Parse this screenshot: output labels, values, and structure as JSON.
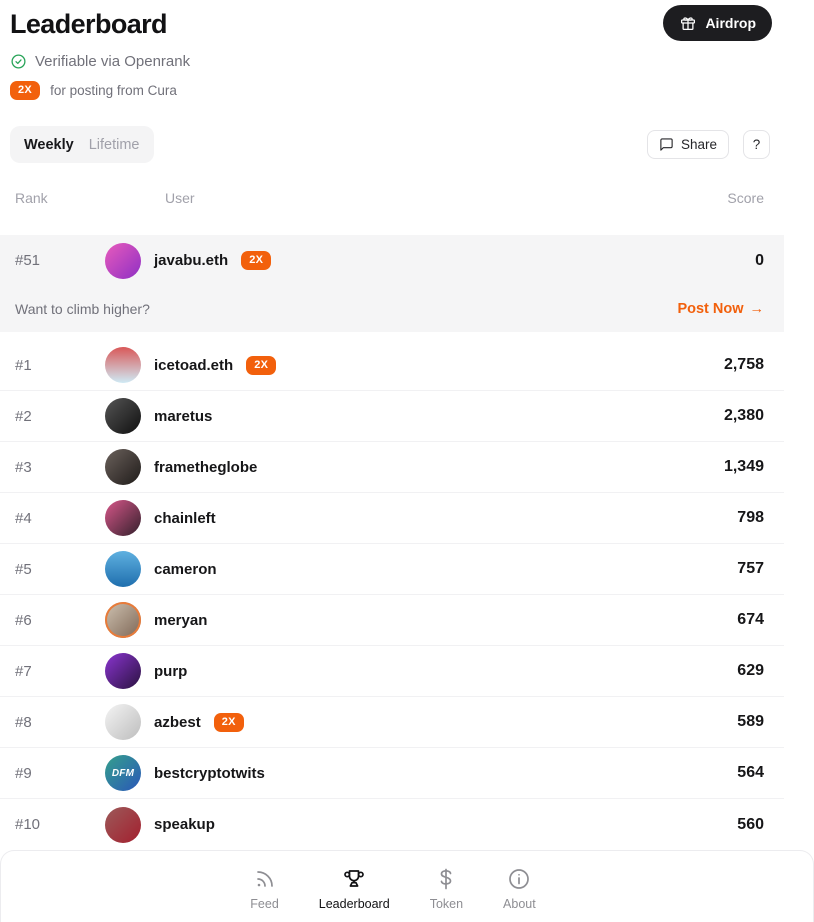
{
  "header": {
    "title": "Leaderboard",
    "airdrop_button": "Airdrop",
    "verification": "Verifiable via Openrank",
    "badge_2x": "2X",
    "boost_note": "for posting from Cura"
  },
  "controls": {
    "tabs": [
      {
        "label": "Weekly",
        "active": true
      },
      {
        "label": "Lifetime",
        "active": false
      }
    ],
    "share_button": "Share",
    "help_button": "?"
  },
  "table": {
    "headers": {
      "rank": "Rank",
      "user": "User",
      "score": "Score"
    },
    "current_user_row": {
      "rank": "#51",
      "name": "javabu.eth",
      "has_2x": true,
      "score": "0",
      "avatar": {
        "from": "#e85bbc",
        "to": "#8e2fc4",
        "angle": 135
      }
    },
    "climb_prompt": "Want to climb higher?",
    "post_now_label": "Post Now",
    "post_now_arrow": "→",
    "rows": [
      {
        "rank": "#1",
        "name": "icetoad.eth",
        "has_2x": true,
        "score": "2,758",
        "avatar": {
          "from": "#d95858",
          "to": "#cfeaf5",
          "angle": 180
        }
      },
      {
        "rank": "#2",
        "name": "maretus",
        "has_2x": false,
        "score": "2,380",
        "avatar": {
          "from": "#555555",
          "to": "#101010",
          "angle": 135
        }
      },
      {
        "rank": "#3",
        "name": "frametheglobe",
        "has_2x": false,
        "score": "1,349",
        "avatar": {
          "from": "#6b615c",
          "to": "#1f1b19",
          "angle": 135
        }
      },
      {
        "rank": "#4",
        "name": "chainleft",
        "has_2x": false,
        "score": "798",
        "avatar": {
          "from": "#d8578a",
          "to": "#33202b",
          "angle": 135
        }
      },
      {
        "rank": "#5",
        "name": "cameron",
        "has_2x": false,
        "score": "757",
        "avatar": {
          "from": "#5fb0e0",
          "to": "#1f6fae",
          "angle": 180
        }
      },
      {
        "rank": "#6",
        "name": "meryan",
        "has_2x": false,
        "score": "674",
        "avatar": {
          "from": "#cfc3b2",
          "to": "#7d6554",
          "angle": 135,
          "ring": "#e87b3a"
        }
      },
      {
        "rank": "#7",
        "name": "purp",
        "has_2x": false,
        "score": "629",
        "avatar": {
          "from": "#8a35d0",
          "to": "#2a1240",
          "angle": 135
        }
      },
      {
        "rank": "#8",
        "name": "azbest",
        "has_2x": true,
        "score": "589",
        "avatar": {
          "from": "#f4f4f4",
          "to": "#bdbdbd",
          "angle": 135
        }
      },
      {
        "rank": "#9",
        "name": "bestcryptotwits",
        "has_2x": false,
        "score": "564",
        "avatar": {
          "from": "#35a08c",
          "to": "#2a57b8",
          "angle": 135,
          "text": "DFM"
        }
      },
      {
        "rank": "#10",
        "name": "speakup",
        "has_2x": false,
        "score": "560",
        "avatar": {
          "from": "#9c5a5a",
          "to": "#a31f2e",
          "angle": 135
        }
      }
    ]
  },
  "bottom_nav": {
    "items": [
      {
        "label": "Feed",
        "icon": "rss-icon",
        "active": false
      },
      {
        "label": "Leaderboard",
        "icon": "trophy-icon",
        "active": true
      },
      {
        "label": "Token",
        "icon": "dollar-icon",
        "active": false
      },
      {
        "label": "About",
        "icon": "info-icon",
        "active": false
      }
    ]
  },
  "colors": {
    "accent_orange": "#f2600c",
    "verified_green": "#27a357",
    "highlight_bg": "#f5f5f6"
  }
}
